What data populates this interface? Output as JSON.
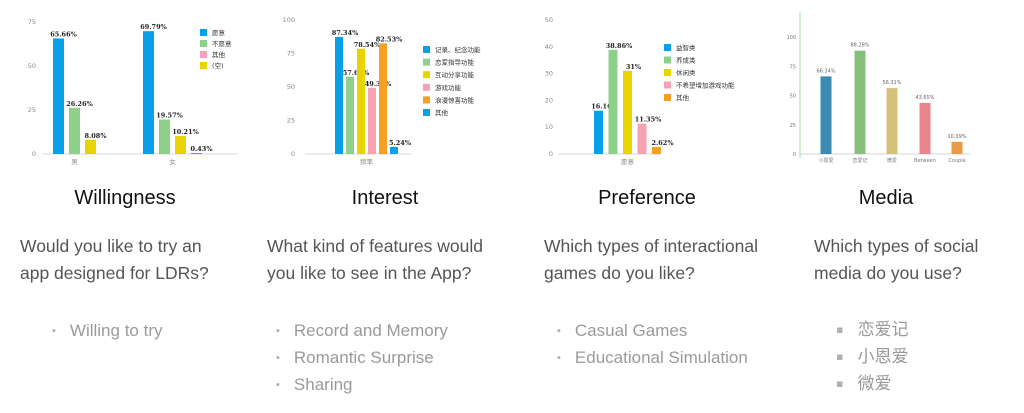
{
  "chart_data": [
    {
      "type": "bar",
      "title": "Willingness",
      "categories": [
        "男",
        "女"
      ],
      "series": [
        {
          "name": "愿意",
          "color": "#0aa0e8",
          "values": [
            65.66,
            69.79
          ],
          "labels": [
            "65.66%",
            "69.79%"
          ]
        },
        {
          "name": "不愿意",
          "color": "#8ed08a",
          "values": [
            26.26,
            19.57
          ],
          "labels": [
            "26.26%",
            "19.57%"
          ]
        },
        {
          "name": "其他",
          "color": "#f5a3b2",
          "values": [
            null,
            null
          ],
          "labels": [
            "",
            ""
          ]
        },
        {
          "name": "(空)",
          "color": "#e8d400",
          "values": [
            8.08,
            10.21
          ],
          "labels": [
            "8.08%",
            "10.21%"
          ]
        },
        {
          "name": "",
          "color": "#8c3fd6",
          "values": [
            null,
            0.43
          ],
          "labels": [
            "",
            "0.43%"
          ]
        }
      ],
      "yticks": [
        "0",
        "25",
        "50",
        "75"
      ],
      "ylim": [
        0,
        75
      ],
      "legend": [
        "愿意",
        "不愿意",
        "其他",
        "(空)"
      ]
    },
    {
      "type": "bar",
      "title": "Interest",
      "categories": [
        "频率"
      ],
      "series": [
        {
          "name": "记录、纪念功能",
          "color": "#0aa0e8",
          "values": [
            87.34
          ],
          "labels": [
            "87.34%"
          ]
        },
        {
          "name": "恋爱指导功能",
          "color": "#8ed08a",
          "values": [
            57.64
          ],
          "labels": [
            "57.64%"
          ]
        },
        {
          "name": "互动分享功能",
          "color": "#e8d400",
          "values": [
            78.54
          ],
          "labels": [
            "78.54%"
          ]
        },
        {
          "name": "游戏功能",
          "color": "#f5a3b2",
          "values": [
            49.34
          ],
          "labels": [
            "49.34%"
          ]
        },
        {
          "name": "浪漫惊喜功能",
          "color": "#f5a020",
          "values": [
            82.53
          ],
          "labels": [
            "82.53%"
          ]
        },
        {
          "name": "其他",
          "color": "#0aa0e8",
          "values": [
            5.24
          ],
          "labels": [
            "5.24%"
          ]
        }
      ],
      "yticks": [
        "0",
        "25",
        "50",
        "75",
        "100"
      ],
      "ylim": [
        0,
        100
      ],
      "legend": [
        "记录、纪念功能",
        "恋爱指导功能",
        "互动分享功能",
        "游戏功能",
        "浪漫惊喜功能",
        "其他"
      ]
    },
    {
      "type": "bar",
      "title": "Preference",
      "categories": [
        "愿意"
      ],
      "series": [
        {
          "name": "益智类",
          "color": "#0aa0e8",
          "values": [
            16.16
          ],
          "labels": [
            "16.16%"
          ]
        },
        {
          "name": "养成类",
          "color": "#8ed08a",
          "values": [
            38.86
          ],
          "labels": [
            "38.86%"
          ]
        },
        {
          "name": "休闲类",
          "color": "#e8d400",
          "values": [
            31
          ],
          "labels": [
            "31%"
          ]
        },
        {
          "name": "不希望增加游戏功能",
          "color": "#f5a3b2",
          "values": [
            11.35
          ],
          "labels": [
            "11.35%"
          ]
        },
        {
          "name": "其他",
          "color": "#f5a020",
          "values": [
            2.62
          ],
          "labels": [
            "2.62%"
          ]
        }
      ],
      "yticks": [
        "0",
        "10",
        "20",
        "30",
        "40",
        "50"
      ],
      "ylim": [
        0,
        50
      ],
      "legend": [
        "益智类",
        "养成类",
        "休闲类",
        "不希望增加游戏功能",
        "其他"
      ]
    },
    {
      "type": "bar",
      "title": "Media",
      "categories": [
        "小恩爱",
        "恋爱记",
        "微爱",
        "Between",
        "Couple"
      ],
      "values": [
        66.34,
        88.28,
        56.31,
        43.65,
        10.39
      ],
      "labels": [
        "66.34%",
        "88.28%",
        "56.31%",
        "43.65%",
        "10.39%"
      ],
      "colors": [
        "#3b8bb0",
        "#86c07c",
        "#d6c07a",
        "#e8848c",
        "#e89a46"
      ],
      "yticks": [
        "0",
        "25",
        "50",
        "75",
        "100"
      ],
      "ylim": [
        0,
        100
      ]
    }
  ],
  "columns": [
    {
      "title": "Willingness",
      "question": [
        "Would you like to try an",
        "app designed for LDRs?"
      ],
      "bullets": [
        "Willing to try"
      ]
    },
    {
      "title": "Interest",
      "question": [
        "What kind of features would",
        "you like to see in the App?"
      ],
      "bullets": [
        "Record and Memory",
        "Romantic Surprise",
        "Sharing"
      ]
    },
    {
      "title": "Preference",
      "question": [
        "Which types of interactional",
        "games do you like?"
      ],
      "bullets": [
        "Casual Games",
        "Educational Simulation"
      ]
    },
    {
      "title": "Media",
      "question": [
        "Which types of social",
        "media do you use?"
      ],
      "bullets": [
        "恋爱记",
        "小恩爱",
        "微爱"
      ]
    }
  ]
}
